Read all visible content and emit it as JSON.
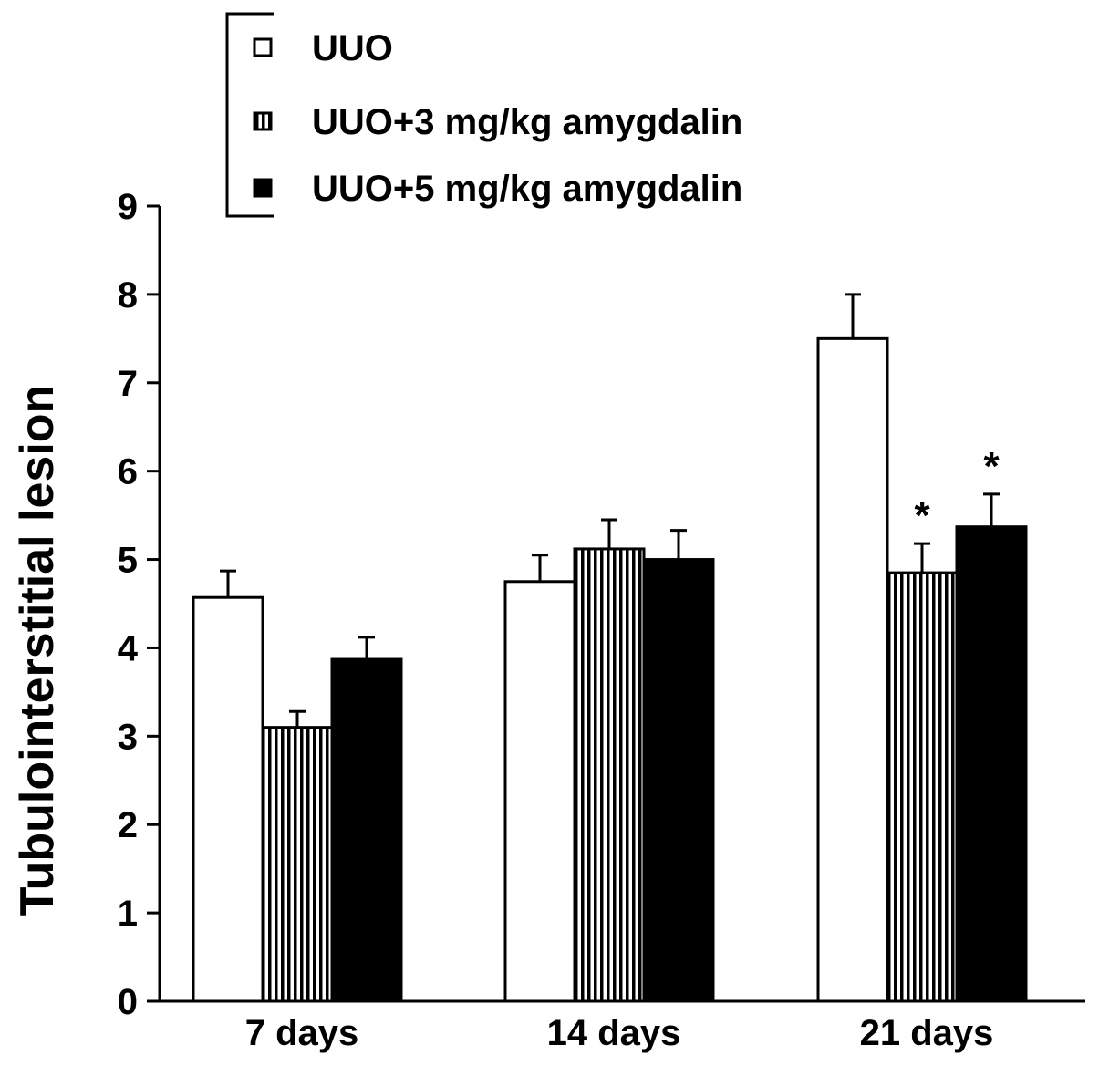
{
  "chart_data": {
    "type": "bar",
    "title": "",
    "xlabel": "",
    "ylabel": "Tubulointerstitial lesion",
    "ylim": [
      0,
      9
    ],
    "yticks": [
      0,
      1,
      2,
      3,
      4,
      5,
      6,
      7,
      8,
      9
    ],
    "grid": false,
    "legend_position": "top",
    "categories": [
      "7 days",
      "14 days",
      "21 days"
    ],
    "series": [
      {
        "name": "UUO",
        "fill": "open",
        "color": "#ffffff",
        "values": [
          4.57,
          4.75,
          7.5
        ],
        "errors": [
          0.3,
          0.3,
          0.5
        ],
        "significance": [
          "",
          "",
          ""
        ]
      },
      {
        "name": "UUO+3 mg/kg amygdalin",
        "fill": "vertical-stripes",
        "color": "#000000",
        "values": [
          3.1,
          5.12,
          4.85
        ],
        "errors": [
          0.18,
          0.33,
          0.33
        ],
        "significance": [
          "",
          "",
          "*"
        ]
      },
      {
        "name": "UUO+5 mg/kg amygdalin",
        "fill": "solid",
        "color": "#000000",
        "values": [
          3.87,
          5.0,
          5.37
        ],
        "errors": [
          0.25,
          0.33,
          0.37
        ],
        "significance": [
          "",
          "",
          "*"
        ]
      }
    ]
  }
}
